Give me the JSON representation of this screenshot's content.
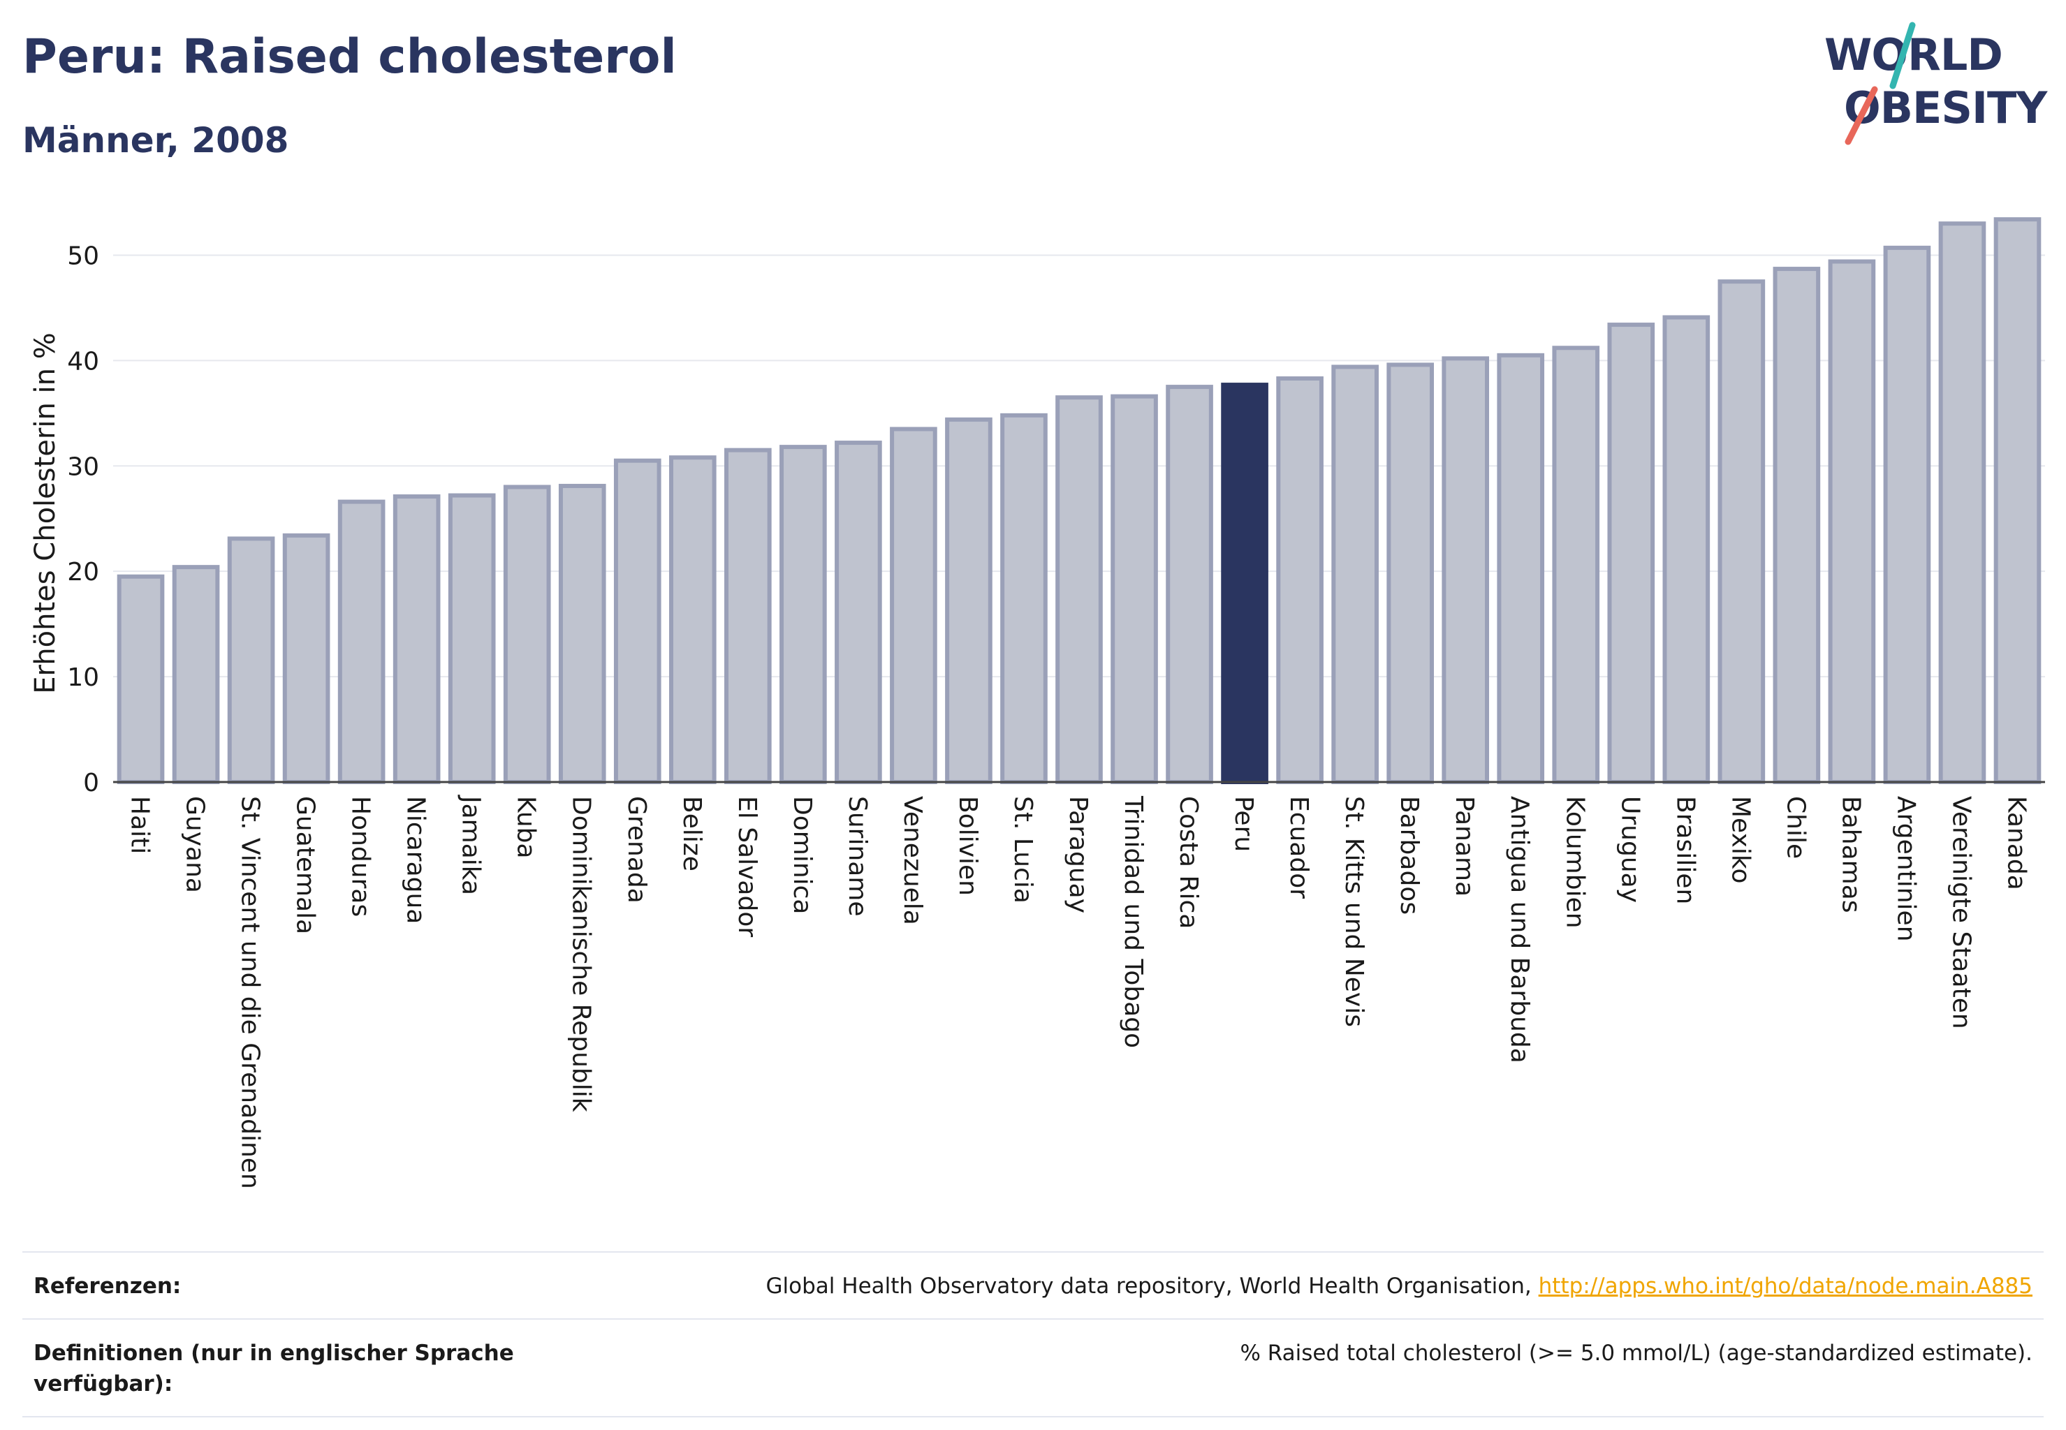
{
  "header": {
    "title": "Peru: Raised cholesterol",
    "subtitle": "Männer, 2008"
  },
  "logo": {
    "line1": "WORLD",
    "line2": "OBESITY"
  },
  "colors": {
    "bar": "#bfc3cf",
    "bar_border": "#9aa0b8",
    "highlight": "#2a3560",
    "brand": "#2a3560",
    "link": "#f0a500"
  },
  "chart_data": {
    "type": "bar",
    "ylabel": "Erhöhtes Cholesterin in %",
    "ylim": [
      0,
      55
    ],
    "yticks": [
      0,
      10,
      20,
      30,
      40,
      50
    ],
    "grid": true,
    "highlight": "Peru",
    "categories": [
      "Haiti",
      "Guyana",
      "St. Vincent und die Grenadinen",
      "Guatemala",
      "Honduras",
      "Nicaragua",
      "Jamaika",
      "Kuba",
      "Dominikanische Republik",
      "Grenada",
      "Belize",
      "El Salvador",
      "Dominica",
      "Suriname",
      "Venezuela",
      "Bolivien",
      "St. Lucia",
      "Paraguay",
      "Trinidad und Tobago",
      "Costa Rica",
      "Peru",
      "Ecuador",
      "St. Kitts und Nevis",
      "Barbados",
      "Panama",
      "Antigua und Barbuda",
      "Kolumbien",
      "Uruguay",
      "Brasilien",
      "Mexiko",
      "Chile",
      "Bahamas",
      "Argentinien",
      "Vereinigte Staaten",
      "Kanada"
    ],
    "values": [
      19.5,
      20.4,
      23.1,
      23.4,
      26.6,
      27.1,
      27.2,
      28.0,
      28.1,
      30.5,
      30.8,
      31.5,
      31.8,
      32.2,
      33.5,
      34.4,
      34.8,
      36.5,
      36.6,
      37.5,
      37.7,
      38.3,
      39.4,
      39.6,
      40.2,
      40.5,
      41.2,
      43.4,
      44.1,
      47.5,
      48.7,
      49.4,
      50.7,
      53.0,
      53.4
    ]
  },
  "footer": {
    "references_label": "Referenzen:",
    "references_text": "Global Health Observatory data repository, World Health Organisation, ",
    "references_link": "http://apps.who.int/gho/data/node.main.A885",
    "definitions_label": "Definitionen (nur in englischer Sprache verfügbar):",
    "definitions_text": "% Raised total cholesterol (>= 5.0 mmol/L) (age-standardized estimate)."
  }
}
